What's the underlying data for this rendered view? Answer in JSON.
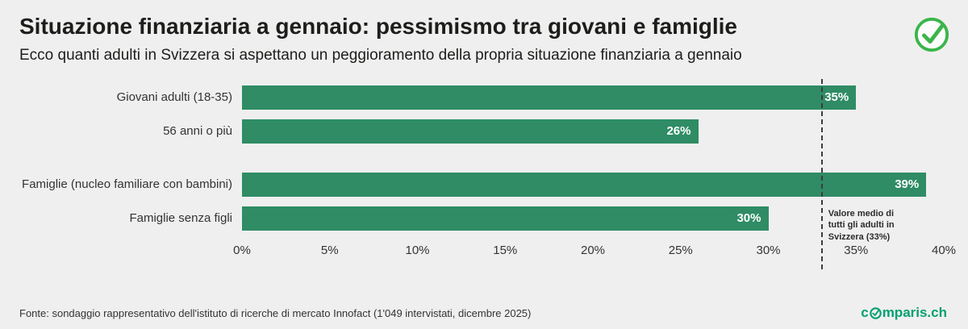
{
  "header": {
    "title": "Situazione finanziaria a gennaio: pessimismo tra giovani e famiglie",
    "subtitle": "Ecco quanti adulti in Svizzera si aspettano un peggioramento della propria situazione finanziaria a gennaio"
  },
  "chart_data": {
    "type": "bar",
    "orientation": "horizontal",
    "categories": [
      "Giovani adulti (18-35)",
      "56 anni o più",
      "Famiglie (nucleo familiare con bambini)",
      "Famiglie senza figli"
    ],
    "values": [
      35,
      26,
      39,
      30
    ],
    "value_labels": [
      "35%",
      "26%",
      "39%",
      "30%"
    ],
    "group_starts": [
      2
    ],
    "xlim": [
      0,
      40
    ],
    "tick_values": [
      0,
      5,
      10,
      15,
      20,
      25,
      30,
      35,
      40
    ],
    "tick_labels": [
      "0%",
      "5%",
      "10%",
      "15%",
      "20%",
      "25%",
      "30%",
      "35%",
      "40%"
    ],
    "grid": false,
    "legend": false,
    "bar_color": "#2f8c65",
    "average_line": {
      "value": 33,
      "label": "Valore medio di tutti gli adulti in Svizzera (33%)"
    }
  },
  "footer": {
    "source": "Fonte: sondaggio rappresentativo dell'istituto di ricerche di mercato Innofact (1'049 intervistati, dicembre 2025)",
    "logo_pre": "c",
    "logo_post": "mparis.ch"
  },
  "colors": {
    "background": "#efefef",
    "bar": "#2f8c65",
    "logo_green": "#00a070",
    "check_green": "#3bb54a"
  }
}
